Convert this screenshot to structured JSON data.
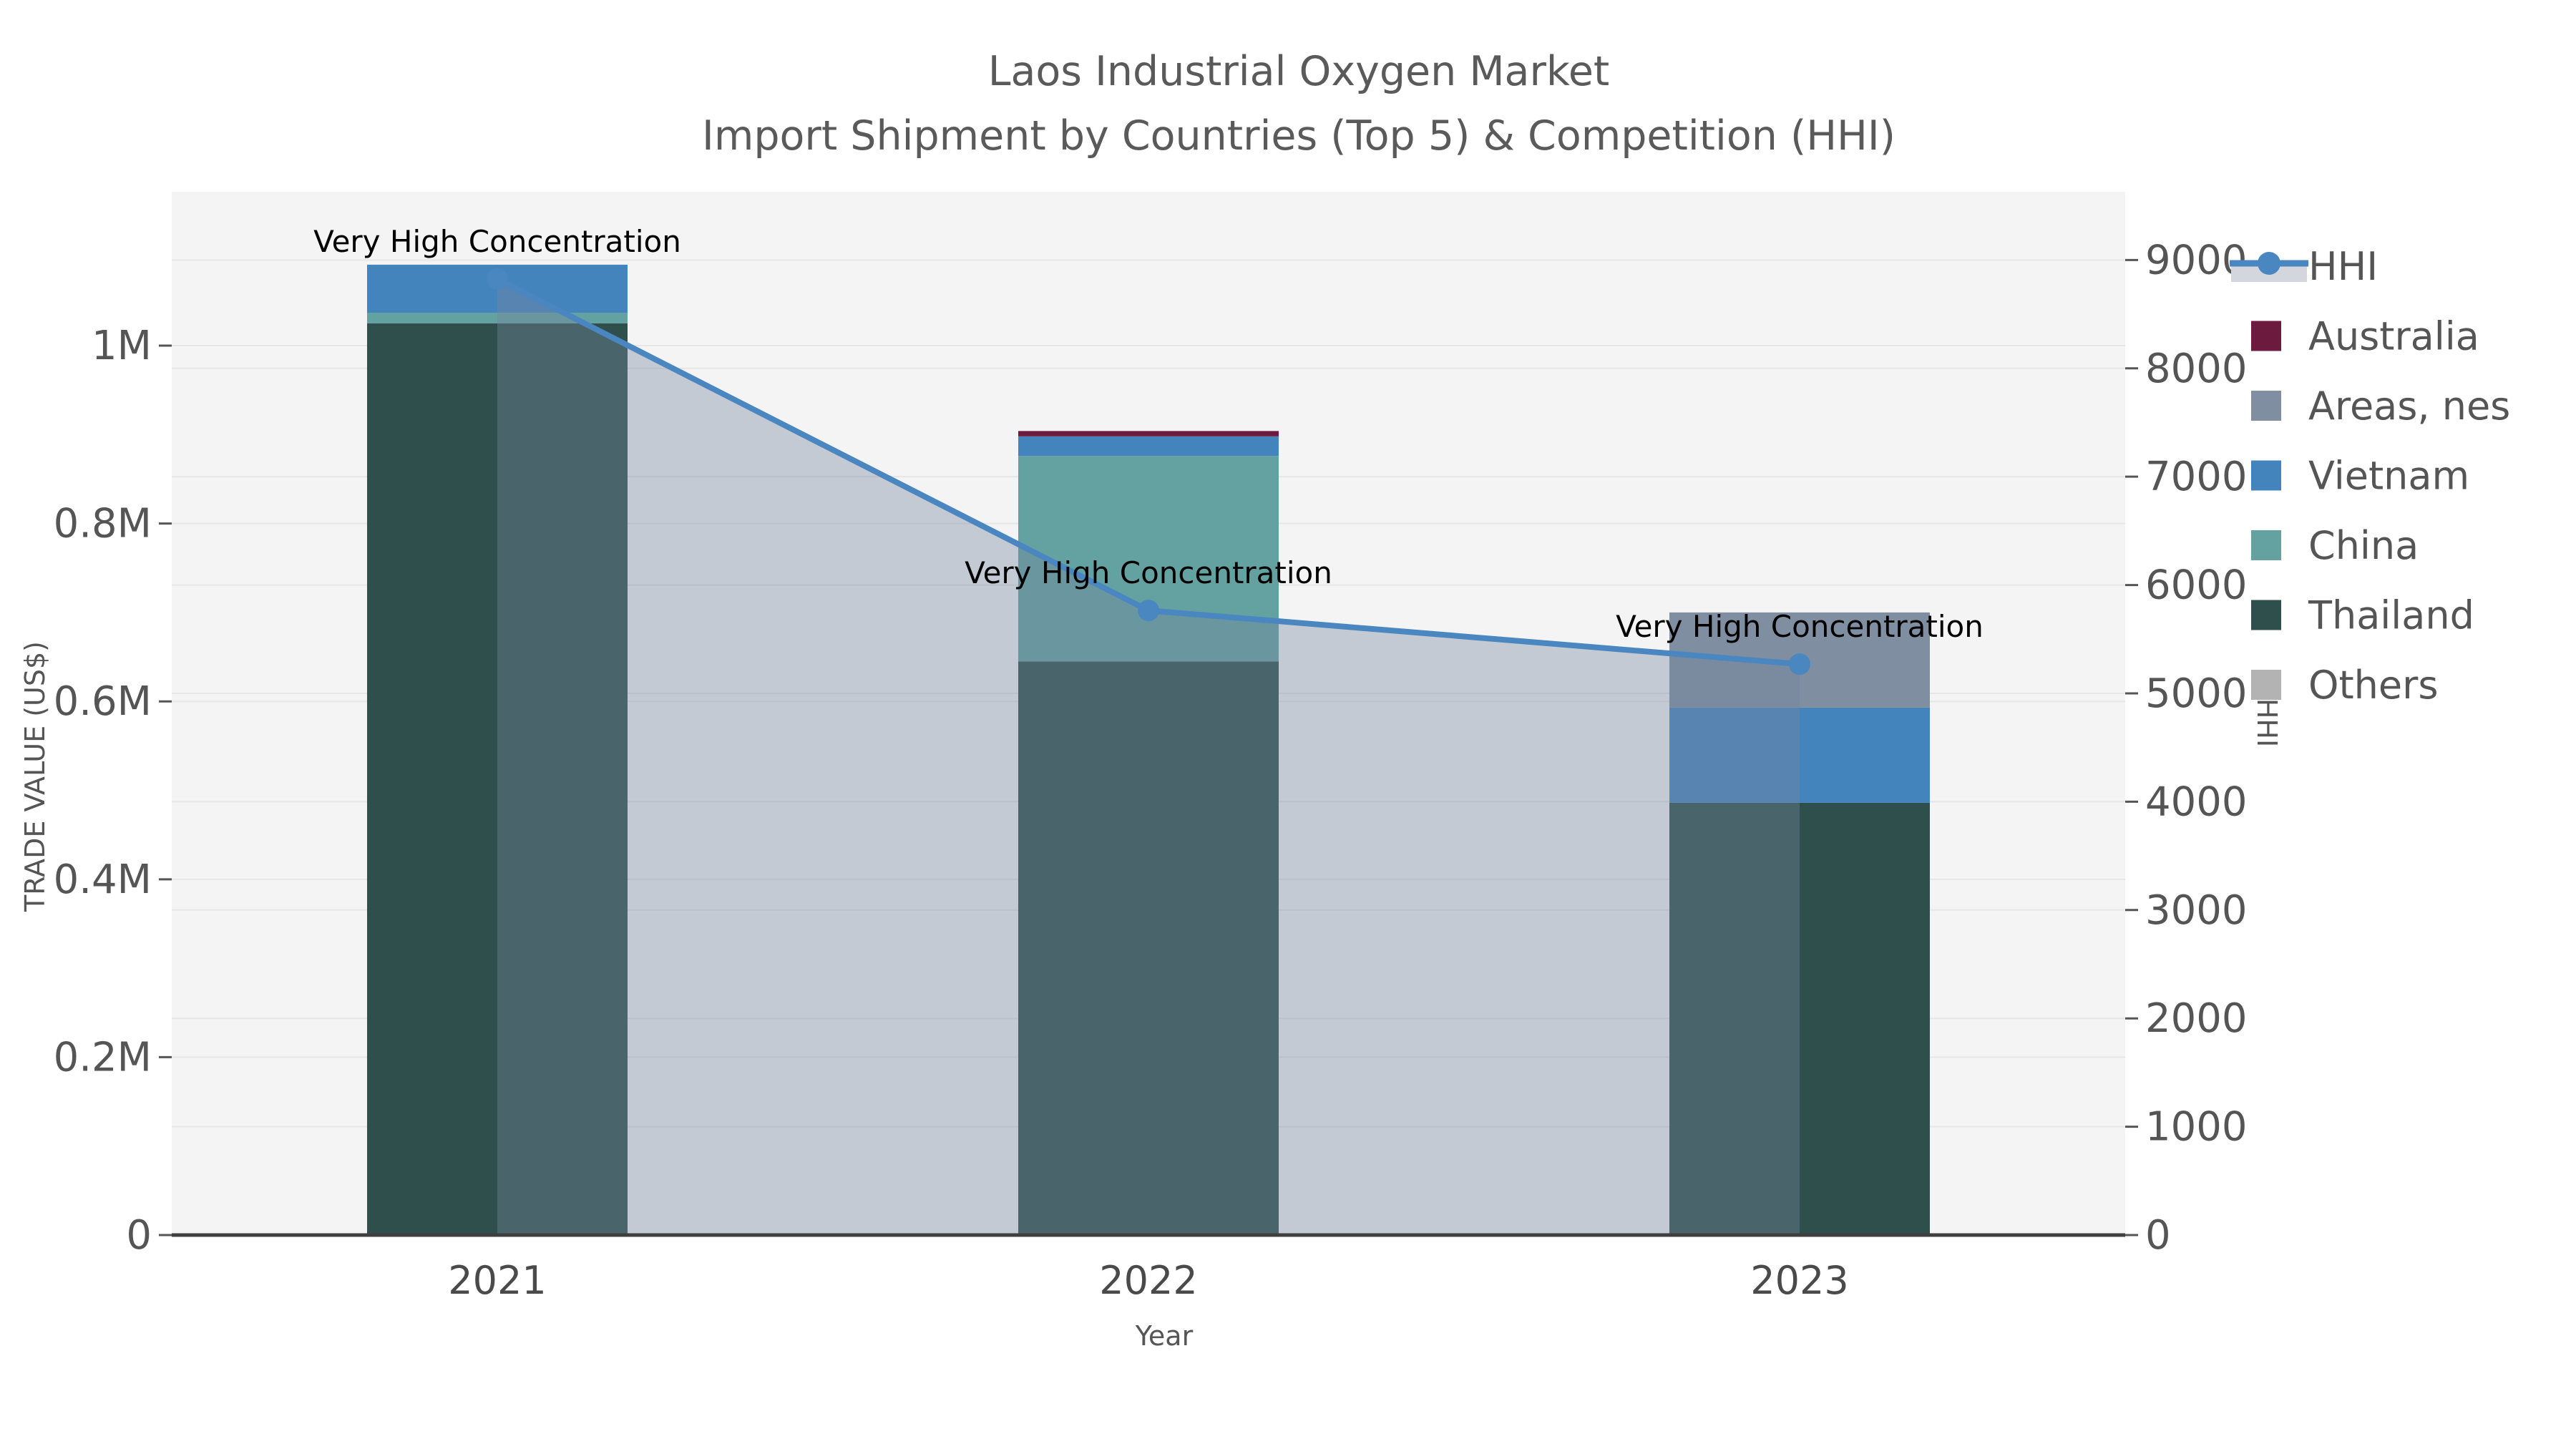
{
  "title": {
    "line1": "Laos Industrial Oxygen Market",
    "line2": "Import Shipment by Countries (Top 5) & Competition (HHI)"
  },
  "chart_data": {
    "type": "combo_stacked_bar_line",
    "title": "Laos Industrial Oxygen Market",
    "subtitle": "Import Shipment by Countries (Top 5) & Competition (HHI)",
    "categories": [
      "2021",
      "2022",
      "2023"
    ],
    "xlabel": "Year",
    "ylabel_left": "TRADE VALUE (US$)",
    "ylabel_right": "HHI",
    "yticks_left": [
      {
        "label": "0",
        "value": 0
      },
      {
        "label": "0.2M",
        "value": 200000
      },
      {
        "label": "0.4M",
        "value": 400000
      },
      {
        "label": "0.6M",
        "value": 600000
      },
      {
        "label": "0.8M",
        "value": 800000
      },
      {
        "label": "1M",
        "value": 1000000
      }
    ],
    "yticks_right": [
      {
        "label": "0",
        "value": 0
      },
      {
        "label": "1000",
        "value": 1000
      },
      {
        "label": "2000",
        "value": 2000
      },
      {
        "label": "3000",
        "value": 3000
      },
      {
        "label": "4000",
        "value": 4000
      },
      {
        "label": "5000",
        "value": 5000
      },
      {
        "label": "6000",
        "value": 6000
      },
      {
        "label": "7000",
        "value": 7000
      },
      {
        "label": "8000",
        "value": 8000
      },
      {
        "label": "9000",
        "value": 9000
      }
    ],
    "ylim_left": [
      0,
      1173000
    ],
    "ylim_right": [
      0,
      9630
    ],
    "grid": true,
    "legend_position": "right",
    "series": [
      {
        "name": "Thailand",
        "color": "#2e4f4b",
        "values": [
          1025000,
          645000,
          486000
        ]
      },
      {
        "name": "China",
        "color": "#63a2a0",
        "values": [
          12000,
          231000,
          0
        ]
      },
      {
        "name": "Vietnam",
        "color": "#4484bd",
        "values": [
          54000,
          22000,
          107000
        ]
      },
      {
        "name": "Areas, nes",
        "color": "#7f8ea0",
        "values": [
          0,
          0,
          107000
        ]
      },
      {
        "name": "Australia",
        "color": "#6d1a3f",
        "values": [
          0,
          6000,
          0
        ]
      },
      {
        "name": "Others",
        "color": "#b3b3b3",
        "values": [
          0,
          0,
          0
        ]
      }
    ],
    "line_series": {
      "name": "HHI",
      "axis": "right",
      "color": "#4a86c0",
      "area_fill": "rgba(118,135,158,0.38)",
      "values": [
        8825,
        5765,
        5270
      ]
    },
    "annotations": [
      {
        "category": "2021",
        "text": "Very High Concentration"
      },
      {
        "category": "2022",
        "text": "Very High Concentration"
      },
      {
        "category": "2023",
        "text": "Very High Concentration"
      }
    ],
    "legend": [
      {
        "label": "HHI",
        "kind": "line",
        "color": "#4a86c0"
      },
      {
        "label": "Australia",
        "kind": "patch",
        "color": "#6d1a3f"
      },
      {
        "label": "Areas, nes",
        "kind": "patch",
        "color": "#7f8ea0"
      },
      {
        "label": "Vietnam",
        "kind": "patch",
        "color": "#4484bd"
      },
      {
        "label": "China",
        "kind": "patch",
        "color": "#63a2a0"
      },
      {
        "label": "Thailand",
        "kind": "patch",
        "color": "#2e4f4b"
      },
      {
        "label": "Others",
        "kind": "patch",
        "color": "#b3b3b3"
      }
    ]
  },
  "style": {
    "plot_bg": "#f4f4f4",
    "grid_color": "#e6e6e6",
    "axis_line_color": "#3f3f3f",
    "tick_label_color": "#555555",
    "annotation_color": "#000000",
    "title_color": "#5a5a5a"
  }
}
